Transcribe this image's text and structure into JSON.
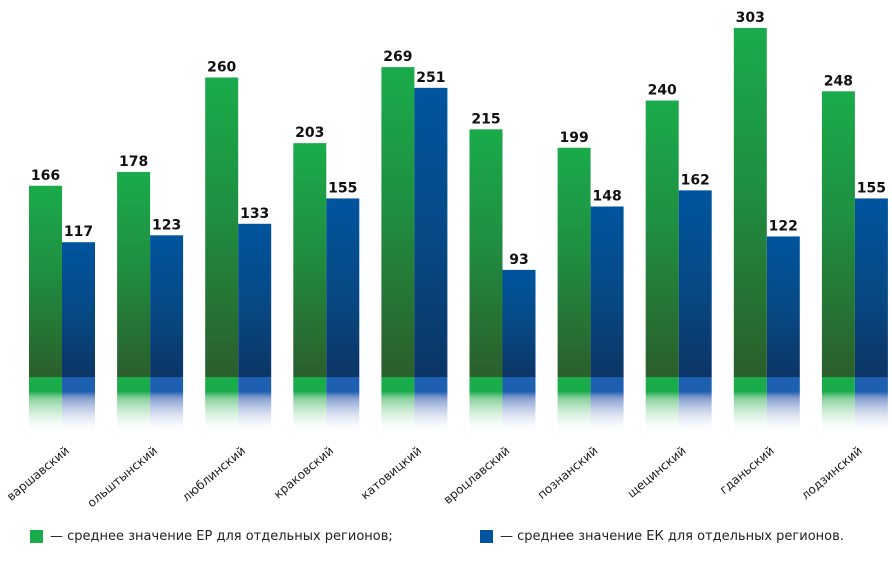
{
  "chart_data": {
    "type": "bar",
    "categories": [
      "варшавский",
      "ольштынский",
      "люблинский",
      "краковский",
      "катовицкий",
      "вроцлавский",
      "познанский",
      "щецинский",
      "гданьский",
      "лодзинский"
    ],
    "series": [
      {
        "name": "— среднее значение ЕР для отдельных регионов;",
        "color": "#1aab4b",
        "values": [
          166,
          178,
          260,
          203,
          269,
          215,
          199,
          240,
          303,
          248
        ]
      },
      {
        "name": "— среднее значение ЕК для отдельных регионов.",
        "color": "#00539f",
        "values": [
          117,
          123,
          133,
          155,
          251,
          93,
          148,
          162,
          122,
          155
        ]
      }
    ],
    "data_labels": true,
    "legend_position": "bottom"
  }
}
